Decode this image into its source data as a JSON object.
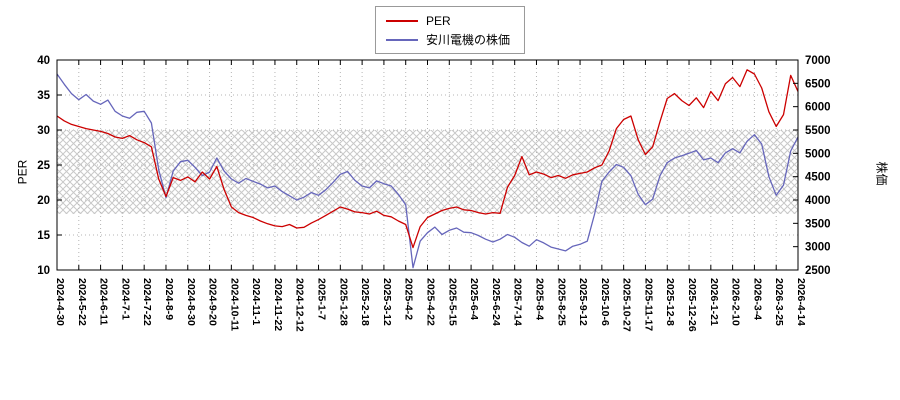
{
  "axes": {
    "left_label": "PER",
    "right_label": "株価"
  },
  "chart_data": {
    "type": "line",
    "title": "",
    "grid": true,
    "legend_position": "top-center",
    "band": {
      "axis": "left",
      "from": 18,
      "to": 30,
      "style": "crosshatch",
      "color": "#c8c8c8"
    },
    "y_left": {
      "label": "PER",
      "min": 10,
      "max": 40,
      "ticks": [
        10,
        15,
        20,
        25,
        30,
        35,
        40
      ]
    },
    "y_right": {
      "label": "株価",
      "min": 2500,
      "max": 7000,
      "ticks": [
        2500,
        3000,
        3500,
        4000,
        4500,
        5000,
        5500,
        6000,
        6500,
        7000
      ]
    },
    "x_tick_labels": [
      "2024-4-30",
      "2024-5-22",
      "2024-6-11",
      "2024-7-1",
      "2024-7-22",
      "2024-8-9",
      "2024-8-30",
      "2024-9-20",
      "2024-10-11",
      "2024-11-1",
      "2024-11-22",
      "2024-12-12",
      "2025-1-7",
      "2025-1-28",
      "2025-2-18",
      "2025-3-12",
      "2025-4-2",
      "2025-4-22",
      "2025-5-15",
      "2025-6-4",
      "2025-6-24",
      "2025-7-14",
      "2025-8-4",
      "2025-8-25",
      "2025-9-12",
      "2025-10-6",
      "2025-10-27",
      "2025-11-17",
      "2025-12-8",
      "2025-12-26",
      "2026-1-21",
      "2026-2-10",
      "2026-3-4",
      "2026-3-25",
      "2026-4-14"
    ],
    "points_per_tick_interval": 3,
    "series": [
      {
        "name": "PER",
        "axis": "left",
        "color": "#cc0000",
        "values": [
          32.0,
          31.3,
          30.8,
          30.5,
          30.2,
          30.0,
          29.8,
          29.5,
          29.0,
          28.8,
          29.2,
          28.6,
          28.2,
          27.6,
          23.0,
          20.5,
          23.2,
          22.8,
          23.3,
          22.6,
          24.0,
          23.0,
          24.8,
          21.5,
          19.0,
          18.2,
          17.8,
          17.5,
          17.0,
          16.6,
          16.3,
          16.2,
          16.5,
          16.0,
          16.1,
          16.7,
          17.2,
          17.8,
          18.4,
          19.0,
          18.7,
          18.3,
          18.2,
          18.0,
          18.4,
          17.8,
          17.6,
          17.0,
          16.5,
          13.2,
          16.2,
          17.5,
          18.0,
          18.5,
          18.8,
          19.0,
          18.6,
          18.5,
          18.2,
          18.0,
          18.2,
          18.1,
          21.8,
          23.5,
          26.2,
          23.6,
          24.0,
          23.7,
          23.2,
          23.5,
          23.1,
          23.6,
          23.8,
          24.0,
          24.6,
          25.0,
          27.0,
          30.2,
          31.5,
          32.0,
          28.6,
          26.5,
          27.6,
          31.2,
          34.5,
          35.2,
          34.2,
          33.5,
          34.6,
          33.2,
          35.5,
          34.2,
          36.6,
          37.5,
          36.2,
          38.6,
          38.0,
          36.0,
          32.6,
          30.5,
          32.2,
          37.8,
          35.5
        ]
      },
      {
        "name": "安川電機の株価",
        "axis": "right",
        "color": "#6666bb",
        "values": [
          6700,
          6480,
          6280,
          6150,
          6260,
          6120,
          6050,
          6140,
          5900,
          5800,
          5750,
          5880,
          5900,
          5650,
          4650,
          4050,
          4620,
          4820,
          4850,
          4700,
          4520,
          4600,
          4900,
          4620,
          4450,
          4360,
          4460,
          4400,
          4340,
          4260,
          4300,
          4180,
          4090,
          4000,
          4060,
          4160,
          4100,
          4220,
          4380,
          4550,
          4610,
          4420,
          4300,
          4260,
          4410,
          4350,
          4300,
          4120,
          3900,
          2550,
          3120,
          3300,
          3420,
          3260,
          3350,
          3400,
          3310,
          3300,
          3240,
          3160,
          3100,
          3160,
          3260,
          3200,
          3090,
          3010,
          3150,
          3080,
          2990,
          2950,
          2910,
          3010,
          3050,
          3120,
          3700,
          4400,
          4600,
          4760,
          4700,
          4520,
          4120,
          3900,
          4020,
          4520,
          4800,
          4900,
          4950,
          5000,
          5060,
          4860,
          4900,
          4800,
          5010,
          5100,
          5010,
          5260,
          5400,
          5200,
          4500,
          4100,
          4320,
          5050,
          5350
        ]
      }
    ]
  }
}
